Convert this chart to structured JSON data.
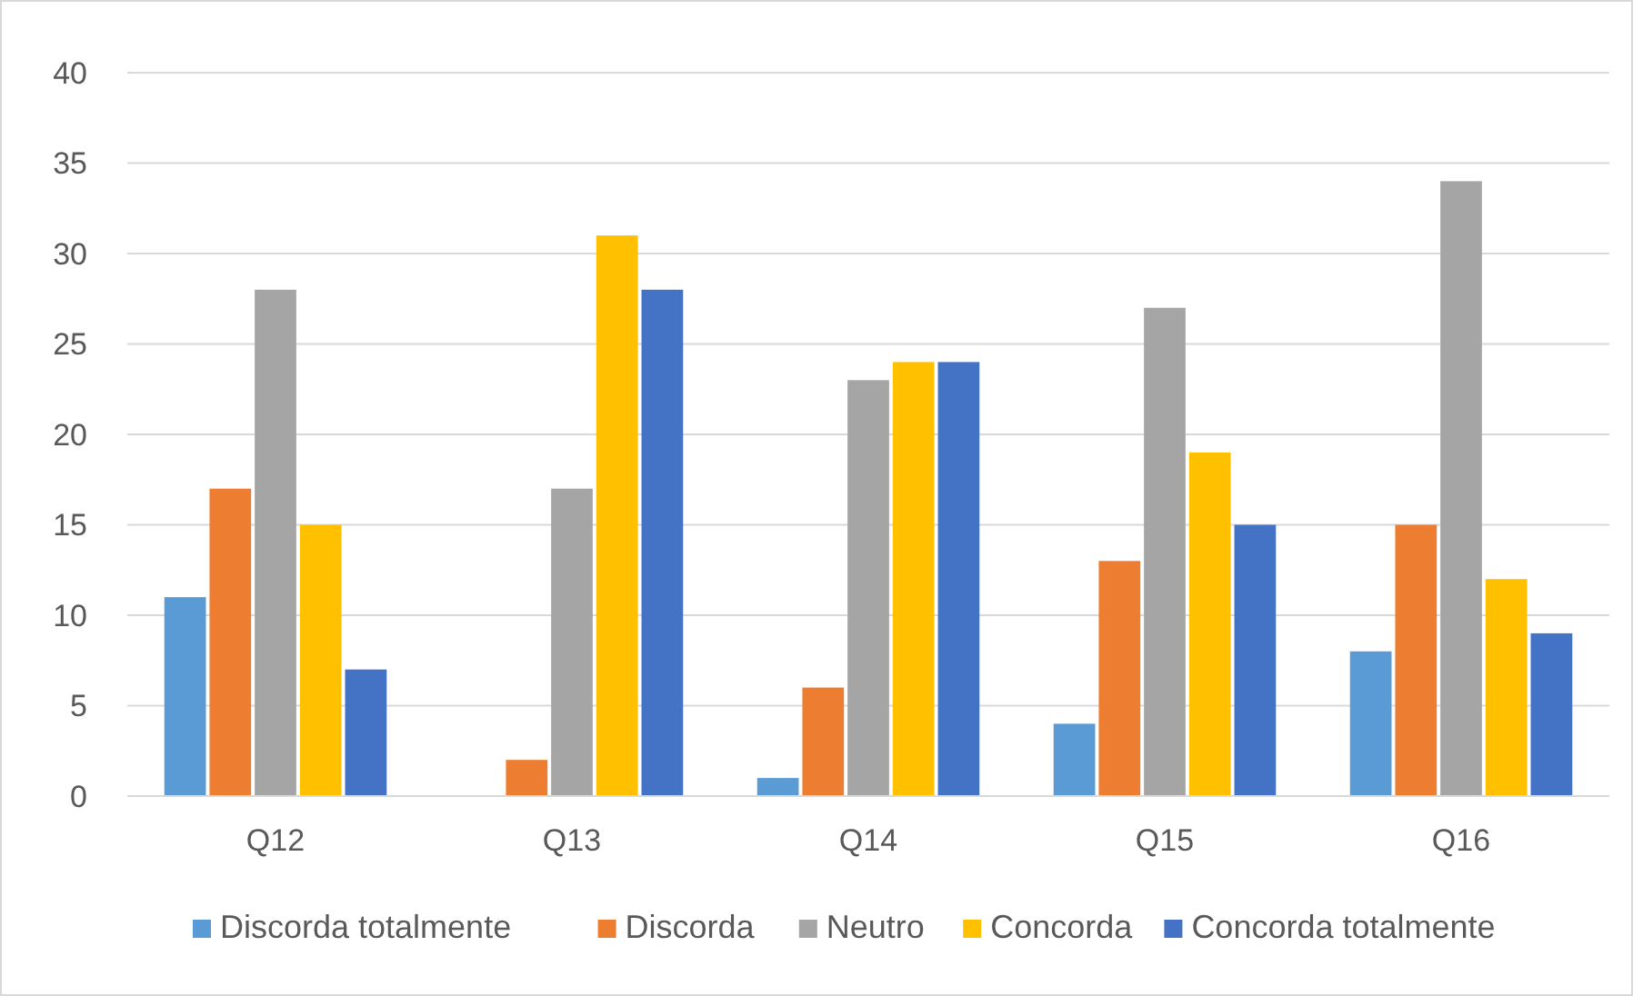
{
  "chart_data": {
    "type": "bar",
    "categories": [
      "Q12",
      "Q13",
      "Q14",
      "Q15",
      "Q16"
    ],
    "series": [
      {
        "name": "Discorda totalmente",
        "color": "#5b9bd5",
        "values": [
          11,
          0,
          1,
          4,
          8
        ]
      },
      {
        "name": "Discorda",
        "color": "#ed7d31",
        "values": [
          17,
          2,
          6,
          13,
          15
        ]
      },
      {
        "name": "Neutro",
        "color": "#a5a5a5",
        "values": [
          28,
          17,
          23,
          27,
          34
        ]
      },
      {
        "name": "Concorda",
        "color": "#ffc000",
        "values": [
          15,
          31,
          24,
          19,
          12
        ]
      },
      {
        "name": "Concorda totalmente",
        "color": "#4472c4",
        "values": [
          7,
          28,
          24,
          15,
          9
        ]
      }
    ],
    "ylim": [
      0,
      40
    ],
    "yticks": [
      0,
      5,
      10,
      15,
      20,
      25,
      30,
      35,
      40
    ],
    "grid": "y",
    "legend": "bottom"
  }
}
